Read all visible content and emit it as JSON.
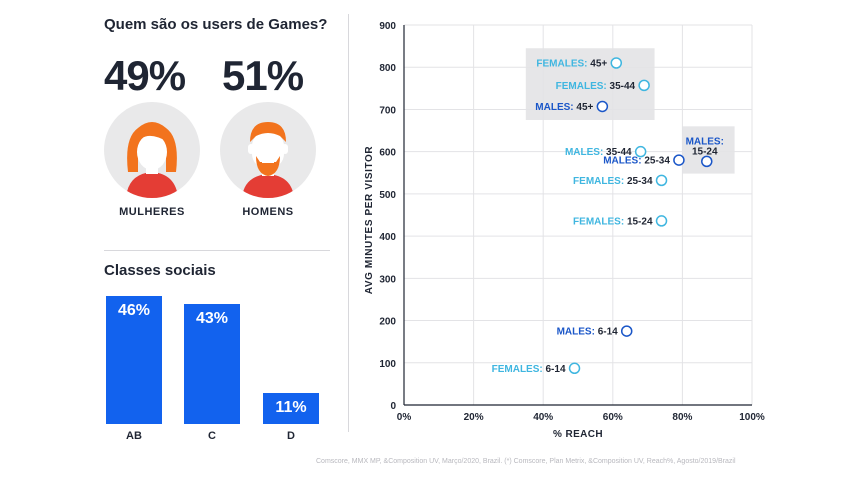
{
  "header": {
    "title": "Quem são os users de Games?"
  },
  "gender": [
    {
      "percent": "49%",
      "label": "MULHERES",
      "hair_color": "#f2731d",
      "shirt_color": "#e43d35"
    },
    {
      "percent": "51%",
      "label": "HOMENS",
      "hair_color": "#f2731d",
      "shirt_color": "#e43d35"
    }
  ],
  "classes": {
    "title": "Classes sociais",
    "bar_color": "#1262ee",
    "items": [
      {
        "label": "AB",
        "value": 46,
        "display": "46%"
      },
      {
        "label": "C",
        "value": 43,
        "display": "43%"
      },
      {
        "label": "D",
        "value": 11,
        "display": "11%"
      }
    ]
  },
  "chart_data": {
    "type": "scatter",
    "xlabel": "% REACH",
    "ylabel": "AVG MINUTES PER VISITOR",
    "xlim": [
      0,
      100
    ],
    "ylim": [
      0,
      900
    ],
    "x_ticks": [
      "0%",
      "20%",
      "40%",
      "60%",
      "80%",
      "100%"
    ],
    "y_ticks": [
      "0",
      "100",
      "200",
      "300",
      "400",
      "500",
      "600",
      "700",
      "800",
      "900"
    ],
    "grid": true,
    "colors": {
      "females": "#3fb6e0",
      "males": "#1a56c8",
      "label_dark": "#1f2533",
      "highlight": "#e6e6e8"
    },
    "points": [
      {
        "group": "FEMALES",
        "age": "45+",
        "x": 61,
        "y": 810,
        "color": "females"
      },
      {
        "group": "FEMALES",
        "age": "35-44",
        "x": 69,
        "y": 757,
        "color": "females"
      },
      {
        "group": "MALES",
        "age": "45+",
        "x": 57,
        "y": 707,
        "color": "males"
      },
      {
        "group": "MALES",
        "age": "35-44",
        "x": 68,
        "y": 600,
        "color": "females"
      },
      {
        "group": "MALES",
        "age": "25-34",
        "x": 79,
        "y": 580,
        "color": "males"
      },
      {
        "group": "MALES",
        "age": "15-24",
        "x": 87,
        "y": 577,
        "color": "males"
      },
      {
        "group": "FEMALES",
        "age": "25-34",
        "x": 74,
        "y": 532,
        "color": "females"
      },
      {
        "group": "FEMALES",
        "age": "15-24",
        "x": 74,
        "y": 436,
        "color": "females"
      },
      {
        "group": "MALES",
        "age": "6-14",
        "x": 64,
        "y": 175,
        "color": "males"
      },
      {
        "group": "FEMALES",
        "age": "6-14",
        "x": 49,
        "y": 87,
        "color": "females"
      }
    ]
  },
  "source": "Comscore, MMX MP, &Composition UV, Março/2020, Brazil. (*) Comscore, Plan Metrix, &Composition UV, Reach%, Agosto/2019/Brazil"
}
